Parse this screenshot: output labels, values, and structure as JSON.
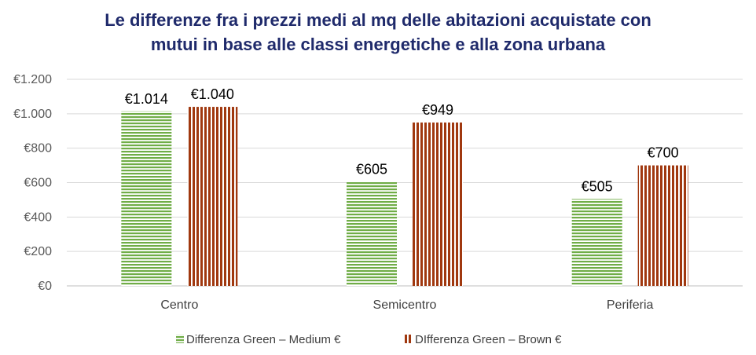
{
  "chart_data": {
    "type": "bar",
    "title": "Le differenze fra i prezzi medi al mq delle abitazioni acquistate con mutui in base alle classi energetiche e alla zona urbana",
    "title_lines": [
      "Le differenze fra i prezzi medi al mq delle abitazioni acquistate con",
      "mutui in base alle classi energetiche e alla zona urbana"
    ],
    "categories": [
      "Centro",
      "Semicentro",
      "Periferia"
    ],
    "series": [
      {
        "name": "Differenza Green – Medium €",
        "values": [
          1014,
          605,
          505
        ],
        "labels": [
          "€1.014",
          "€605",
          "€505"
        ],
        "color": "#70ad47",
        "pattern": "horizontal-stripes"
      },
      {
        "name": "DIfferenza  Green – Brown €",
        "values": [
          1040,
          949,
          700
        ],
        "labels": [
          "€1.040",
          "€949",
          "€700"
        ],
        "color": "#a0380f",
        "pattern": "vertical-stripes"
      }
    ],
    "ylim": [
      0,
      1200
    ],
    "y_ticks": [
      0,
      200,
      400,
      600,
      800,
      1000,
      1200
    ],
    "y_tick_labels": [
      "€0",
      "€200",
      "€400",
      "€600",
      "€800",
      "€1.000",
      "€1.200"
    ],
    "xlabel": "",
    "ylabel": "",
    "grid": true,
    "legend_position": "bottom"
  }
}
